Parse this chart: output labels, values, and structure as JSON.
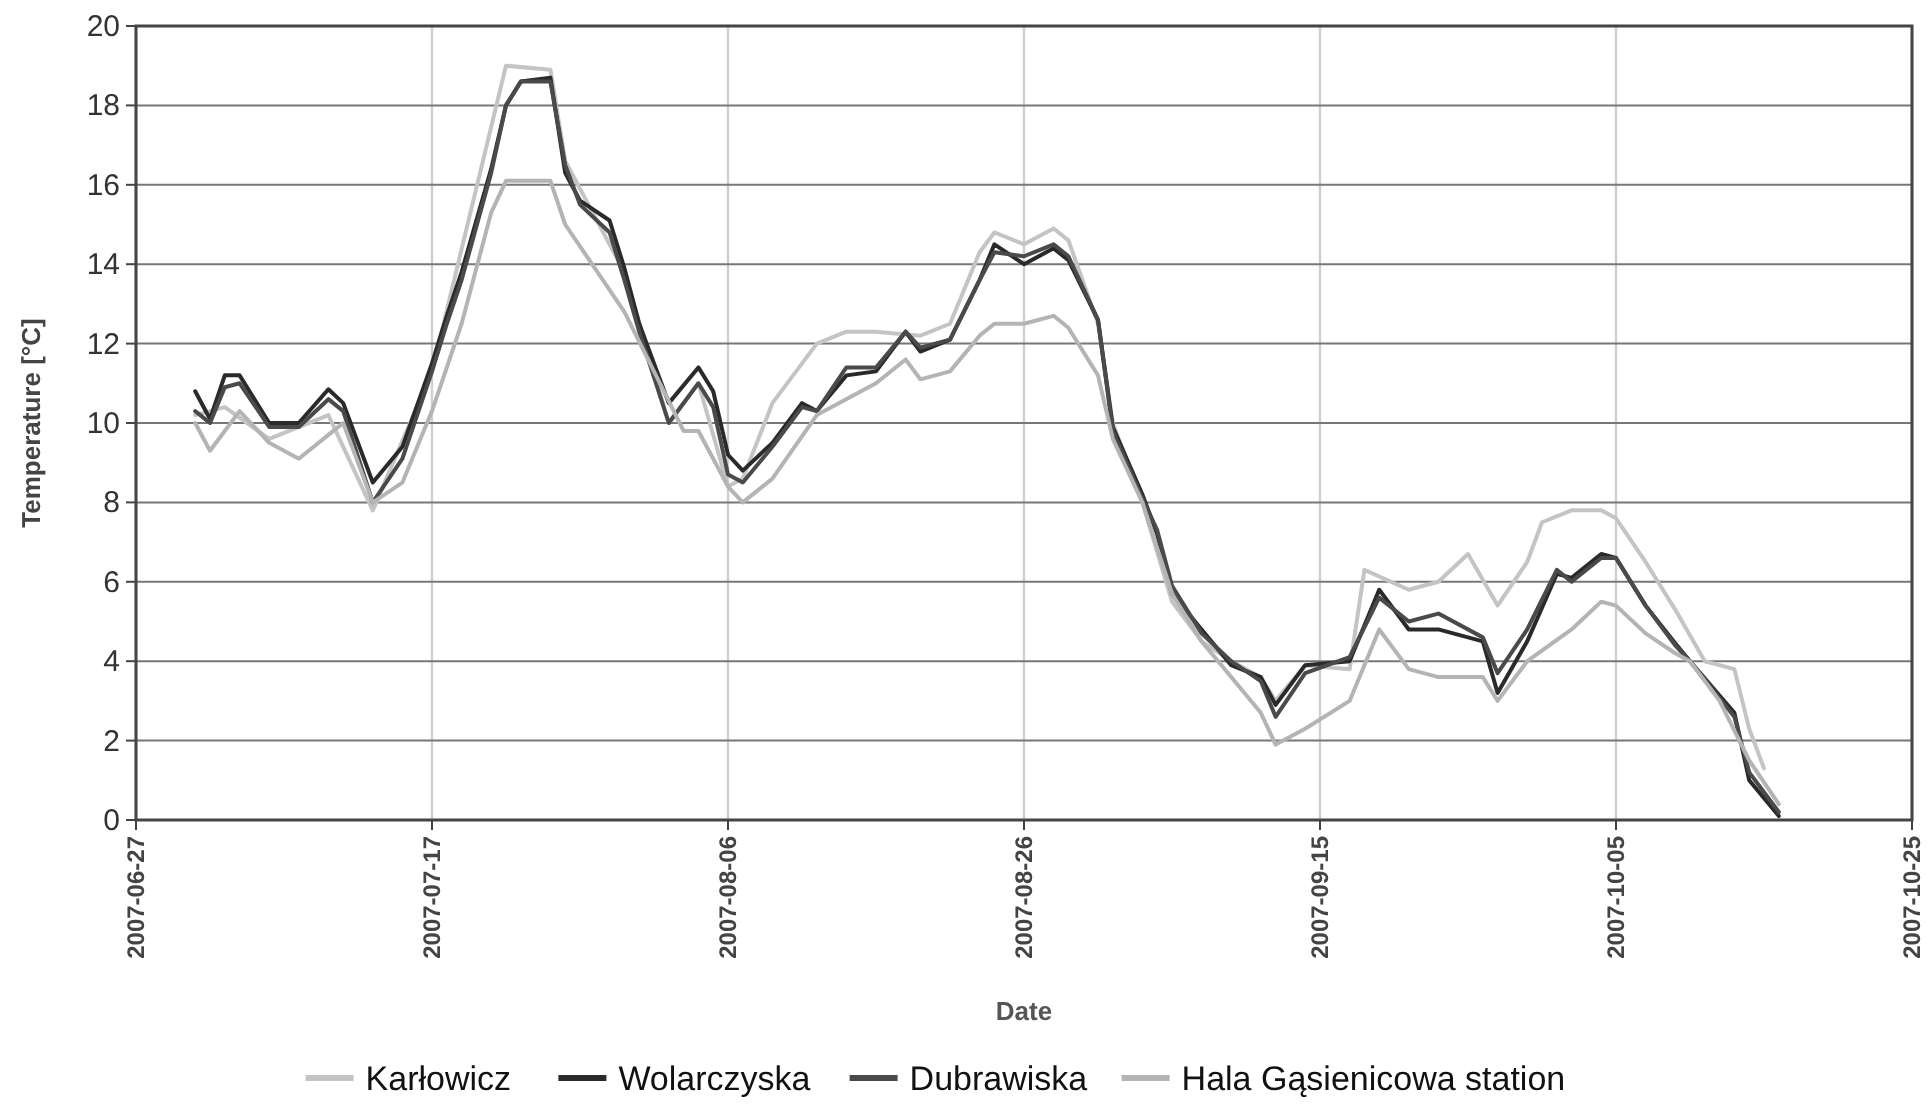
{
  "chart_data": {
    "type": "line",
    "xlabel": "Date",
    "ylabel": "Temperature [°C]",
    "xlim": [
      "2007-06-27",
      "2007-10-25"
    ],
    "xticks": [
      "2007-06-27",
      "2007-07-17",
      "2007-08-06",
      "2007-08-26",
      "2007-09-15",
      "2007-10-05",
      "2007-10-25"
    ],
    "ylim": [
      0,
      20
    ],
    "yticks": [
      0,
      2,
      4,
      6,
      8,
      10,
      12,
      14,
      16,
      18,
      20
    ],
    "grid": true,
    "legend": "bottom",
    "marker": "none",
    "line_style": "solid",
    "series": [
      {
        "name": "Karłowicz",
        "color": "#c4c4c4",
        "x": [
          "2007-07-01",
          "2007-07-03",
          "2007-07-06",
          "2007-07-10",
          "2007-07-13",
          "2007-07-17",
          "2007-07-22",
          "2007-07-25",
          "2007-07-26",
          "2007-07-30",
          "2007-08-02",
          "2007-08-04",
          "2007-08-06",
          "2007-08-07",
          "2007-08-09",
          "2007-08-12",
          "2007-08-14",
          "2007-08-16",
          "2007-08-19",
          "2007-08-21",
          "2007-08-23",
          "2007-08-24",
          "2007-08-26",
          "2007-08-28",
          "2007-08-29",
          "2007-08-31",
          "2007-09-01",
          "2007-09-03",
          "2007-09-05",
          "2007-09-07",
          "2007-09-09",
          "2007-09-11",
          "2007-09-12",
          "2007-09-14",
          "2007-09-17",
          "2007-09-18",
          "2007-09-21",
          "2007-09-23",
          "2007-09-25",
          "2007-09-27",
          "2007-09-29",
          "2007-09-30",
          "2007-10-02",
          "2007-10-04",
          "2007-10-05",
          "2007-10-07",
          "2007-10-09",
          "2007-10-11",
          "2007-10-13",
          "2007-10-14",
          "2007-10-15"
        ],
        "values": [
          10.2,
          10.4,
          9.6,
          10.2,
          7.8,
          11.3,
          19.0,
          18.9,
          16.6,
          13.8,
          10.0,
          11.0,
          8.4,
          8.6,
          10.5,
          12.0,
          12.3,
          12.3,
          12.2,
          12.5,
          14.3,
          14.8,
          14.5,
          14.9,
          14.6,
          12.5,
          10.0,
          8.0,
          5.5,
          4.5,
          4.0,
          3.6,
          3.0,
          3.9,
          3.8,
          6.3,
          5.8,
          6.0,
          6.7,
          5.4,
          6.5,
          7.5,
          7.8,
          7.8,
          7.6,
          6.5,
          5.3,
          4.0,
          3.8,
          2.3,
          1.3
        ]
      },
      {
        "name": "Wolarczyska",
        "color": "#2a2a2a",
        "x": [
          "2007-07-01",
          "2007-07-02",
          "2007-07-03",
          "2007-07-04",
          "2007-07-06",
          "2007-07-08",
          "2007-07-10",
          "2007-07-11",
          "2007-07-13",
          "2007-07-15",
          "2007-07-17",
          "2007-07-18",
          "2007-07-19",
          "2007-07-21",
          "2007-07-22",
          "2007-07-23",
          "2007-07-25",
          "2007-07-26",
          "2007-07-27",
          "2007-07-29",
          "2007-07-30",
          "2007-07-31",
          "2007-08-02",
          "2007-08-04",
          "2007-08-05",
          "2007-08-06",
          "2007-08-07",
          "2007-08-09",
          "2007-08-11",
          "2007-08-12",
          "2007-08-14",
          "2007-08-16",
          "2007-08-18",
          "2007-08-19",
          "2007-08-21",
          "2007-08-23",
          "2007-08-24",
          "2007-08-26",
          "2007-08-28",
          "2007-08-29",
          "2007-08-31",
          "2007-09-01",
          "2007-09-03",
          "2007-09-04",
          "2007-09-05",
          "2007-09-07",
          "2007-09-09",
          "2007-09-11",
          "2007-09-12",
          "2007-09-14",
          "2007-09-17",
          "2007-09-19",
          "2007-09-21",
          "2007-09-23",
          "2007-09-26",
          "2007-09-27",
          "2007-09-29",
          "2007-10-01",
          "2007-10-02",
          "2007-10-04",
          "2007-10-05",
          "2007-10-07",
          "2007-10-09",
          "2007-10-10",
          "2007-10-13",
          "2007-10-14",
          "2007-10-16"
        ],
        "values": [
          10.8,
          10.1,
          11.2,
          11.2,
          10.0,
          10.0,
          10.85,
          10.5,
          8.5,
          9.4,
          11.5,
          12.7,
          13.8,
          16.4,
          18.0,
          18.6,
          18.7,
          16.3,
          15.6,
          15.1,
          13.9,
          12.5,
          10.5,
          11.4,
          10.8,
          9.2,
          8.8,
          9.5,
          10.5,
          10.3,
          11.2,
          11.3,
          12.3,
          11.8,
          12.1,
          13.6,
          14.5,
          14.0,
          14.4,
          14.1,
          12.6,
          9.9,
          8.2,
          7.2,
          5.7,
          4.8,
          3.9,
          3.6,
          2.9,
          3.9,
          4.0,
          5.8,
          4.8,
          4.8,
          4.5,
          3.2,
          4.5,
          6.2,
          6.1,
          6.7,
          6.6,
          5.4,
          4.45,
          4.0,
          2.7,
          1.0,
          0.1
        ]
      },
      {
        "name": "Dubrawiska",
        "color": "#4a4a4a",
        "x": [
          "2007-07-01",
          "2007-07-02",
          "2007-07-03",
          "2007-07-04",
          "2007-07-06",
          "2007-07-08",
          "2007-07-10",
          "2007-07-11",
          "2007-07-13",
          "2007-07-15",
          "2007-07-17",
          "2007-07-18",
          "2007-07-19",
          "2007-07-21",
          "2007-07-22",
          "2007-07-23",
          "2007-07-25",
          "2007-07-26",
          "2007-07-27",
          "2007-07-29",
          "2007-07-30",
          "2007-07-31",
          "2007-08-02",
          "2007-08-04",
          "2007-08-05",
          "2007-08-06",
          "2007-08-07",
          "2007-08-09",
          "2007-08-11",
          "2007-08-12",
          "2007-08-14",
          "2007-08-16",
          "2007-08-18",
          "2007-08-19",
          "2007-08-21",
          "2007-08-23",
          "2007-08-24",
          "2007-08-26",
          "2007-08-28",
          "2007-08-29",
          "2007-08-31",
          "2007-09-01",
          "2007-09-03",
          "2007-09-04",
          "2007-09-05",
          "2007-09-07",
          "2007-09-09",
          "2007-09-11",
          "2007-09-12",
          "2007-09-14",
          "2007-09-17",
          "2007-09-19",
          "2007-09-21",
          "2007-09-23",
          "2007-09-26",
          "2007-09-27",
          "2007-09-29",
          "2007-10-01",
          "2007-10-02",
          "2007-10-04",
          "2007-10-05",
          "2007-10-07",
          "2007-10-09",
          "2007-10-10",
          "2007-10-13",
          "2007-10-14",
          "2007-10-16"
        ],
        "values": [
          10.3,
          10.0,
          10.9,
          11.0,
          9.9,
          9.9,
          10.6,
          10.3,
          8.0,
          9.1,
          11.3,
          12.5,
          13.6,
          16.3,
          18.0,
          18.6,
          18.6,
          16.5,
          15.5,
          14.8,
          13.6,
          12.3,
          10.0,
          11.0,
          10.4,
          8.7,
          8.5,
          9.4,
          10.4,
          10.3,
          11.4,
          11.4,
          12.3,
          11.9,
          12.1,
          13.6,
          14.3,
          14.2,
          14.5,
          14.2,
          12.6,
          9.8,
          8.1,
          7.3,
          5.9,
          4.7,
          4.0,
          3.5,
          2.6,
          3.7,
          4.1,
          5.6,
          5.0,
          5.2,
          4.6,
          3.7,
          4.8,
          6.3,
          6.0,
          6.6,
          6.6,
          5.4,
          4.4,
          4.0,
          2.6,
          1.2,
          0.2
        ]
      },
      {
        "name": "Hala Gąsienicowa station",
        "color": "#b4b4b4",
        "x": [
          "2007-07-01",
          "2007-07-02",
          "2007-07-04",
          "2007-07-06",
          "2007-07-08",
          "2007-07-10",
          "2007-07-11",
          "2007-07-13",
          "2007-07-15",
          "2007-07-17",
          "2007-07-19",
          "2007-07-21",
          "2007-07-22",
          "2007-07-25",
          "2007-07-26",
          "2007-07-28",
          "2007-07-30",
          "2007-08-01",
          "2007-08-03",
          "2007-08-04",
          "2007-08-06",
          "2007-08-07",
          "2007-08-09",
          "2007-08-12",
          "2007-08-16",
          "2007-08-18",
          "2007-08-19",
          "2007-08-21",
          "2007-08-23",
          "2007-08-24",
          "2007-08-26",
          "2007-08-28",
          "2007-08-29",
          "2007-08-31",
          "2007-09-01",
          "2007-09-03",
          "2007-09-05",
          "2007-09-07",
          "2007-09-09",
          "2007-09-11",
          "2007-09-12",
          "2007-09-14",
          "2007-09-17",
          "2007-09-19",
          "2007-09-21",
          "2007-09-23",
          "2007-09-26",
          "2007-09-27",
          "2007-09-29",
          "2007-10-02",
          "2007-10-04",
          "2007-10-05",
          "2007-10-07",
          "2007-10-09",
          "2007-10-10",
          "2007-10-12",
          "2007-10-14",
          "2007-10-16"
        ],
        "values": [
          10.0,
          9.3,
          10.3,
          9.5,
          9.1,
          9.7,
          10.0,
          8.0,
          8.5,
          10.3,
          12.5,
          15.3,
          16.1,
          16.1,
          15.0,
          13.9,
          12.8,
          11.3,
          9.8,
          9.8,
          8.4,
          8.0,
          8.6,
          10.2,
          11.0,
          11.6,
          11.1,
          11.3,
          12.2,
          12.5,
          12.5,
          12.7,
          12.4,
          11.2,
          9.6,
          8.0,
          5.7,
          4.5,
          3.6,
          2.7,
          1.9,
          2.3,
          3.0,
          4.8,
          3.8,
          3.6,
          3.6,
          3.0,
          4.0,
          4.8,
          5.5,
          5.4,
          4.7,
          4.2,
          4.0,
          3.0,
          1.5,
          0.4
        ]
      }
    ]
  }
}
